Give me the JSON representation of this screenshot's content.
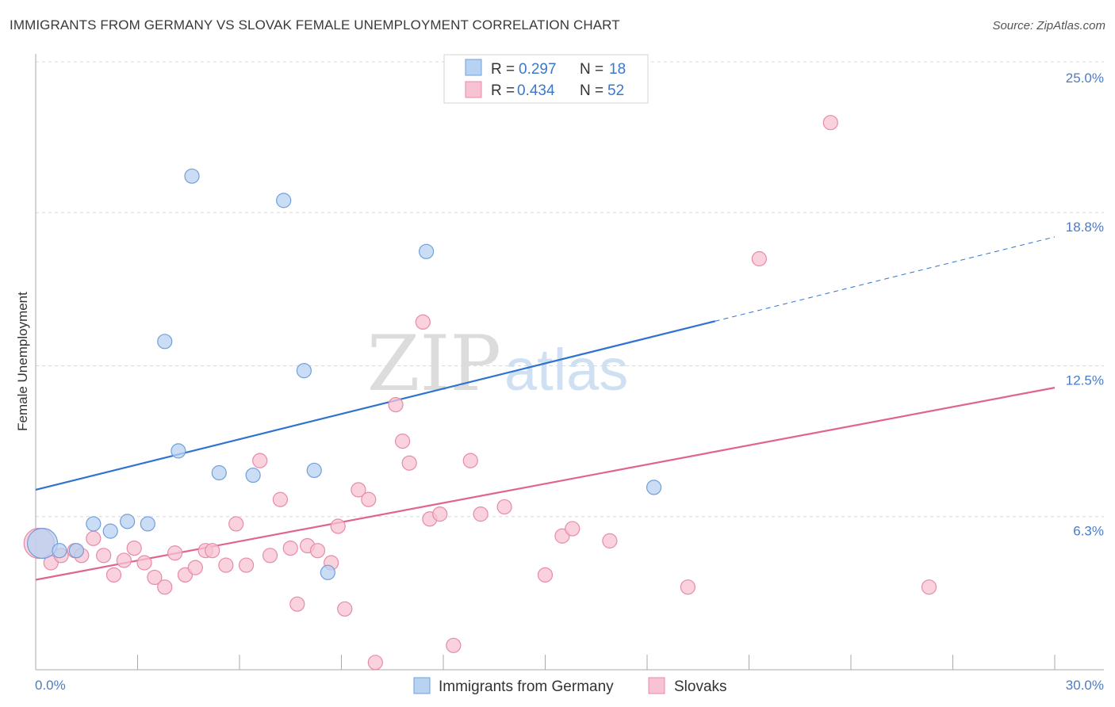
{
  "header": {
    "title": "IMMIGRANTS FROM GERMANY VS SLOVAK FEMALE UNEMPLOYMENT CORRELATION CHART",
    "source": "Source: ZipAtlas.com"
  },
  "watermark": {
    "zip": "ZIP",
    "atlas": "atlas"
  },
  "legend_top": {
    "r_label": "R =",
    "n_label": "N =",
    "rows": [
      {
        "r": "0.297",
        "n": "18"
      },
      {
        "r": "0.434",
        "n": "52"
      }
    ]
  },
  "colors": {
    "blue_fill": "#b8d2f2",
    "blue_stroke": "#6f9fdc",
    "blue_line": "#2f73d0",
    "pink_fill": "#f7c3d3",
    "pink_stroke": "#e88aa8",
    "pink_line": "#e0648f",
    "grid": "#d8d8d8",
    "tick_label": "#4a7cc7"
  },
  "chart_data": {
    "type": "scatter",
    "title": "IMMIGRANTS FROM GERMANY VS SLOVAK FEMALE UNEMPLOYMENT CORRELATION CHART",
    "xlabel": "",
    "ylabel": "Female Unemployment",
    "xlim": [
      0,
      30
    ],
    "ylim": [
      0,
      25
    ],
    "x_tick_labels": [
      "0.0%",
      "30.0%"
    ],
    "y_ticks": [
      6.3,
      12.5,
      18.8,
      25.0
    ],
    "y_tick_labels": [
      "6.3%",
      "12.5%",
      "18.8%",
      "25.0%"
    ],
    "grid": true,
    "legend_placement": "top-center",
    "series": [
      {
        "name": "Immigrants from Germany",
        "r": 0.297,
        "n": 18,
        "trend": {
          "x0": 0,
          "y0": 7.4,
          "x1": 30,
          "y1": 17.8,
          "solid_until_x": 20.0
        },
        "points": [
          {
            "x": 0.2,
            "y": 5.2,
            "big": true
          },
          {
            "x": 0.7,
            "y": 4.9
          },
          {
            "x": 1.2,
            "y": 4.9
          },
          {
            "x": 1.7,
            "y": 6.0
          },
          {
            "x": 2.2,
            "y": 5.7
          },
          {
            "x": 2.7,
            "y": 6.1
          },
          {
            "x": 3.3,
            "y": 6.0
          },
          {
            "x": 3.8,
            "y": 13.5
          },
          {
            "x": 4.2,
            "y": 9.0
          },
          {
            "x": 4.6,
            "y": 20.3
          },
          {
            "x": 5.4,
            "y": 8.1
          },
          {
            "x": 6.4,
            "y": 8.0
          },
          {
            "x": 7.3,
            "y": 19.3
          },
          {
            "x": 7.9,
            "y": 12.3
          },
          {
            "x": 8.2,
            "y": 8.2
          },
          {
            "x": 8.6,
            "y": 4.0
          },
          {
            "x": 11.5,
            "y": 17.2
          },
          {
            "x": 18.2,
            "y": 7.5
          }
        ]
      },
      {
        "name": "Slovaks",
        "r": 0.434,
        "n": 52,
        "trend": {
          "x0": 0,
          "y0": 3.7,
          "x1": 30,
          "y1": 11.6
        },
        "points": [
          {
            "x": 0.1,
            "y": 5.2,
            "big": true
          },
          {
            "x": 0.45,
            "y": 4.4
          },
          {
            "x": 0.75,
            "y": 4.7
          },
          {
            "x": 1.15,
            "y": 4.9
          },
          {
            "x": 1.35,
            "y": 4.7
          },
          {
            "x": 1.7,
            "y": 5.4
          },
          {
            "x": 2.0,
            "y": 4.7
          },
          {
            "x": 2.3,
            "y": 3.9
          },
          {
            "x": 2.6,
            "y": 4.5
          },
          {
            "x": 2.9,
            "y": 5.0
          },
          {
            "x": 3.2,
            "y": 4.4
          },
          {
            "x": 3.5,
            "y": 3.8
          },
          {
            "x": 3.8,
            "y": 3.4
          },
          {
            "x": 4.1,
            "y": 4.8
          },
          {
            "x": 4.4,
            "y": 3.9
          },
          {
            "x": 4.7,
            "y": 4.2
          },
          {
            "x": 5.0,
            "y": 4.9
          },
          {
            "x": 5.2,
            "y": 4.9
          },
          {
            "x": 5.6,
            "y": 4.3
          },
          {
            "x": 5.9,
            "y": 6.0
          },
          {
            "x": 6.2,
            "y": 4.3
          },
          {
            "x": 6.6,
            "y": 8.6
          },
          {
            "x": 6.9,
            "y": 4.7
          },
          {
            "x": 7.2,
            "y": 7.0
          },
          {
            "x": 7.5,
            "y": 5.0
          },
          {
            "x": 7.7,
            "y": 2.7
          },
          {
            "x": 8.0,
            "y": 5.1
          },
          {
            "x": 8.3,
            "y": 4.9
          },
          {
            "x": 8.7,
            "y": 4.4
          },
          {
            "x": 8.9,
            "y": 5.9
          },
          {
            "x": 9.1,
            "y": 2.5
          },
          {
            "x": 9.5,
            "y": 7.4
          },
          {
            "x": 9.8,
            "y": 7.0
          },
          {
            "x": 10.0,
            "y": 0.3
          },
          {
            "x": 10.6,
            "y": 10.9
          },
          {
            "x": 10.8,
            "y": 9.4
          },
          {
            "x": 11.0,
            "y": 8.5
          },
          {
            "x": 11.4,
            "y": 14.3
          },
          {
            "x": 11.6,
            "y": 6.2
          },
          {
            "x": 11.9,
            "y": 6.4
          },
          {
            "x": 12.3,
            "y": 1.0
          },
          {
            "x": 12.8,
            "y": 8.6
          },
          {
            "x": 13.1,
            "y": 6.4
          },
          {
            "x": 13.8,
            "y": 6.7
          },
          {
            "x": 15.0,
            "y": 3.9
          },
          {
            "x": 15.5,
            "y": 5.5
          },
          {
            "x": 15.8,
            "y": 5.8
          },
          {
            "x": 16.9,
            "y": 5.3
          },
          {
            "x": 19.2,
            "y": 3.4
          },
          {
            "x": 21.3,
            "y": 16.9
          },
          {
            "x": 23.4,
            "y": 22.5
          },
          {
            "x": 26.3,
            "y": 3.4
          }
        ]
      }
    ]
  }
}
